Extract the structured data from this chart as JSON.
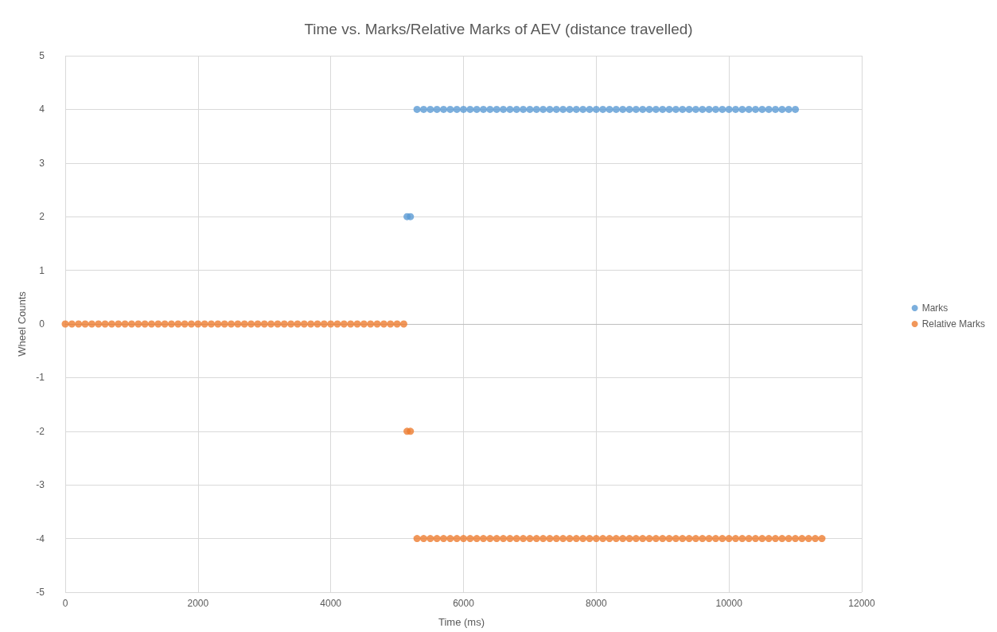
{
  "chart_data": {
    "type": "scatter",
    "title": "Time vs. Marks/Relative Marks of AEV (distance travelled)",
    "xlabel": "Time (ms)",
    "ylabel": "Wheel Counts",
    "xlim": [
      0,
      12000
    ],
    "xticks": [
      0,
      2000,
      4000,
      6000,
      8000,
      10000,
      12000
    ],
    "ylim": [
      -5,
      5
    ],
    "yticks": [
      -5,
      -4,
      -3,
      -2,
      -1,
      0,
      1,
      2,
      3,
      4,
      5
    ],
    "grid": true,
    "legend": "right",
    "marker": "circle",
    "series": [
      {
        "name": "Marks",
        "color": "#5b9bd5",
        "x": [
          5150,
          5200,
          5300,
          5400,
          5500,
          5600,
          5700,
          5800,
          5900,
          6000,
          6100,
          6200,
          6300,
          6400,
          6500,
          6600,
          6700,
          6800,
          6900,
          7000,
          7100,
          7200,
          7300,
          7400,
          7500,
          7600,
          7700,
          7800,
          7900,
          8000,
          8100,
          8200,
          8300,
          8400,
          8500,
          8600,
          8700,
          8800,
          8900,
          9000,
          9100,
          9200,
          9300,
          9400,
          9500,
          9600,
          9700,
          9800,
          9900,
          10000,
          10100,
          10200,
          10300,
          10400,
          10500,
          10600,
          10700,
          10800,
          10900,
          11000
        ],
        "values": [
          2,
          2,
          4,
          4,
          4,
          4,
          4,
          4,
          4,
          4,
          4,
          4,
          4,
          4,
          4,
          4,
          4,
          4,
          4,
          4,
          4,
          4,
          4,
          4,
          4,
          4,
          4,
          4,
          4,
          4,
          4,
          4,
          4,
          4,
          4,
          4,
          4,
          4,
          4,
          4,
          4,
          4,
          4,
          4,
          4,
          4,
          4,
          4,
          4,
          4,
          4,
          4,
          4,
          4,
          4,
          4,
          4,
          4,
          4,
          4
        ]
      },
      {
        "name": "Relative Marks",
        "color": "#ed7d31",
        "x": [
          0,
          100,
          200,
          300,
          400,
          500,
          600,
          700,
          800,
          900,
          1000,
          1100,
          1200,
          1300,
          1400,
          1500,
          1600,
          1700,
          1800,
          1900,
          2000,
          2100,
          2200,
          2300,
          2400,
          2500,
          2600,
          2700,
          2800,
          2900,
          3000,
          3100,
          3200,
          3300,
          3400,
          3500,
          3600,
          3700,
          3800,
          3900,
          4000,
          4100,
          4200,
          4300,
          4400,
          4500,
          4600,
          4700,
          4800,
          4900,
          5000,
          5100,
          5150,
          5200,
          5300,
          5400,
          5500,
          5600,
          5700,
          5800,
          5900,
          6000,
          6100,
          6200,
          6300,
          6400,
          6500,
          6600,
          6700,
          6800,
          6900,
          7000,
          7100,
          7200,
          7300,
          7400,
          7500,
          7600,
          7700,
          7800,
          7900,
          8000,
          8100,
          8200,
          8300,
          8400,
          8500,
          8600,
          8700,
          8800,
          8900,
          9000,
          9100,
          9200,
          9300,
          9400,
          9500,
          9600,
          9700,
          9800,
          9900,
          10000,
          10100,
          10200,
          10300,
          10400,
          10500,
          10600,
          10700,
          10800,
          10900,
          11000,
          11100,
          11200,
          11300,
          11400
        ],
        "values": [
          0,
          0,
          0,
          0,
          0,
          0,
          0,
          0,
          0,
          0,
          0,
          0,
          0,
          0,
          0,
          0,
          0,
          0,
          0,
          0,
          0,
          0,
          0,
          0,
          0,
          0,
          0,
          0,
          0,
          0,
          0,
          0,
          0,
          0,
          0,
          0,
          0,
          0,
          0,
          0,
          0,
          0,
          0,
          0,
          0,
          0,
          0,
          0,
          0,
          0,
          0,
          0,
          -2,
          -2,
          -4,
          -4,
          -4,
          -4,
          -4,
          -4,
          -4,
          -4,
          -4,
          -4,
          -4,
          -4,
          -4,
          -4,
          -4,
          -4,
          -4,
          -4,
          -4,
          -4,
          -4,
          -4,
          -4,
          -4,
          -4,
          -4,
          -4,
          -4,
          -4,
          -4,
          -4,
          -4,
          -4,
          -4,
          -4,
          -4,
          -4,
          -4,
          -4,
          -4,
          -4,
          -4,
          -4,
          -4,
          -4,
          -4,
          -4,
          -4,
          -4,
          -4,
          -4,
          -4,
          -4,
          -4,
          -4,
          -4,
          -4,
          -4,
          -4,
          -4,
          -4,
          -4
        ]
      }
    ]
  }
}
